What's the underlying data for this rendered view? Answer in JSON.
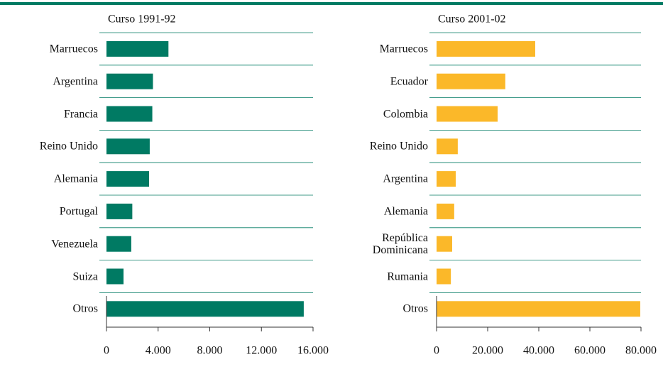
{
  "chart_data": [
    {
      "type": "barh",
      "title": "Curso 1991-92",
      "categories": [
        "Marruecos",
        "Argentina",
        "Francia",
        "Reino Unido",
        "Alemania",
        "Portugal",
        "Venezuela",
        "Suiza",
        "Otros"
      ],
      "values": [
        4800,
        3600,
        3550,
        3350,
        3300,
        2000,
        1920,
        1320,
        15280
      ],
      "color": "#007a63",
      "xlim": [
        0,
        16000
      ],
      "xticks": [
        0,
        {
          "value": 4000,
          "label": "4.000"
        },
        {
          "value": 8000,
          "label": "8.000"
        },
        {
          "value": 12000,
          "label": "12.000"
        },
        {
          "value": 16000,
          "label": "16.000"
        }
      ]
    },
    {
      "type": "barh",
      "title": "Curso 2001-02",
      "categories": [
        "Marruecos",
        "Ecuador",
        "Colombia",
        "Reino Unido",
        "Argentina",
        "Alemania",
        "República\nDominicana",
        "Rumania",
        "Otros"
      ],
      "values": [
        38600,
        26900,
        23900,
        8300,
        7500,
        6900,
        6100,
        5600,
        79700
      ],
      "color": "#fbb829",
      "xlim": [
        0,
        80000
      ],
      "xticks": [
        0,
        {
          "value": 20000,
          "label": "20.000"
        },
        {
          "value": 40000,
          "label": "40.000"
        },
        {
          "value": 60000,
          "label": "60.000"
        },
        {
          "value": 80000,
          "label": "80.000"
        }
      ]
    }
  ]
}
